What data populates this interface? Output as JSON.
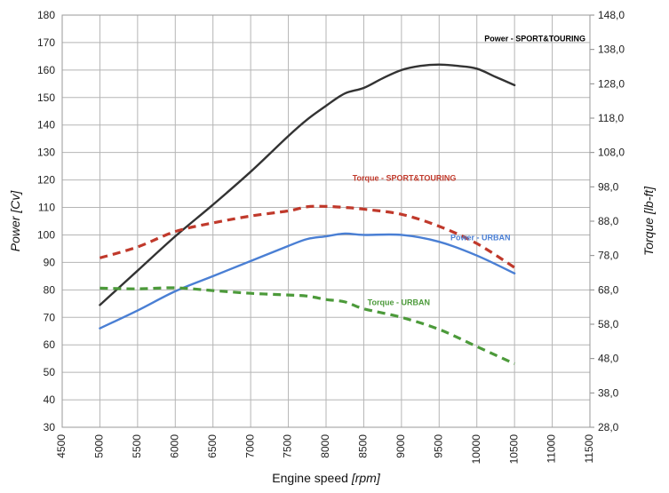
{
  "chart_data": {
    "type": "line",
    "title": "",
    "xlabel": {
      "main": "Engine speed ",
      "unit": "[rpm]"
    },
    "ylabel": {
      "main": "Power ",
      "unit": "[Cv]"
    },
    "y2label": {
      "main": "Torque ",
      "unit": "[lb-ft]"
    },
    "xlim": [
      4500,
      11500
    ],
    "ylim": [
      30,
      180
    ],
    "y2lim": [
      28,
      148
    ],
    "grid": true,
    "x_ticks": [
      "4500",
      "5000",
      "5500",
      "6000",
      "6500",
      "7000",
      "7500",
      "8000",
      "8500",
      "9000",
      "9500",
      "10000",
      "10500",
      "11000",
      "11500"
    ],
    "y_ticks": [
      "30",
      "40",
      "50",
      "60",
      "70",
      "80",
      "90",
      "100",
      "110",
      "120",
      "130",
      "140",
      "150",
      "160",
      "170",
      "180"
    ],
    "y2_ticks": [
      "28,0",
      "38,0",
      "48,0",
      "58,0",
      "68,0",
      "78,0",
      "88,0",
      "98,0",
      "108,0",
      "118,0",
      "128,0",
      "138,0",
      "148,0"
    ],
    "colors": {
      "power_sport": "#333333",
      "torque_sport": "#c0392b",
      "power_urban": "#4a7fd4",
      "torque_urban": "#4c9a3a",
      "grid": "#b5b5b5",
      "axis_title_torque": "#c0392b"
    },
    "series": [
      {
        "name": "Power - SPORT&TOURING",
        "axis": "left",
        "style": "solid",
        "x": [
          5000,
          5500,
          6000,
          6500,
          7000,
          7500,
          7750,
          8000,
          8250,
          8500,
          8750,
          9000,
          9250,
          9500,
          9750,
          10000,
          10250,
          10500
        ],
        "values": [
          74.5,
          87,
          99.5,
          111,
          123,
          136,
          142,
          147,
          151.5,
          153.5,
          157,
          160,
          161.5,
          162,
          161.5,
          160.5,
          157.5,
          154.5
        ]
      },
      {
        "name": "Torque - SPORT&TOURING",
        "axis": "right",
        "style": "dashed",
        "x": [
          5000,
          5500,
          6000,
          6500,
          7000,
          7500,
          7750,
          8000,
          8250,
          8500,
          9000,
          9500,
          10000,
          10500
        ],
        "values": [
          77.3,
          80.5,
          85,
          87.5,
          89.5,
          91,
          92.2,
          92.3,
          92,
          91.5,
          90,
          86.5,
          81.5,
          74.5
        ]
      },
      {
        "name": "Power - URBAN",
        "axis": "left",
        "style": "solid",
        "x": [
          5000,
          5500,
          6000,
          6500,
          7000,
          7500,
          7750,
          8000,
          8250,
          8500,
          9000,
          9500,
          10000,
          10500
        ],
        "values": [
          66,
          72.5,
          79.5,
          85,
          90.5,
          96,
          98.5,
          99.5,
          100.5,
          100,
          100,
          97.5,
          92.5,
          86
        ]
      },
      {
        "name": "Torque - URBAN",
        "axis": "right",
        "style": "dashed",
        "x": [
          5000,
          5500,
          6000,
          6500,
          7000,
          7500,
          7750,
          8000,
          8250,
          8500,
          9000,
          9500,
          10000,
          10500
        ],
        "values": [
          68.5,
          68.3,
          68.6,
          67.8,
          67,
          66.5,
          66.2,
          65.2,
          64.5,
          62.5,
          60,
          56.5,
          51.5,
          46.5
        ]
      }
    ],
    "annotations": [
      {
        "text": "Power - SPORT&TOURING",
        "series": "Power - SPORT&TOURING",
        "x": 10100,
        "y": 170.5,
        "axis": "left"
      },
      {
        "text": "Torque - SPORT&TOURING",
        "series": "Torque - SPORT&TOURING",
        "x": 8350,
        "y": 99.8,
        "axis": "right"
      },
      {
        "text": "Power  - URBAN",
        "series": "Power - URBAN",
        "x": 9650,
        "y": 82.5,
        "axis": "right"
      },
      {
        "text": "Torque - URBAN",
        "series": "Torque - URBAN",
        "x": 8550,
        "y": 63.6,
        "axis": "right"
      }
    ]
  }
}
